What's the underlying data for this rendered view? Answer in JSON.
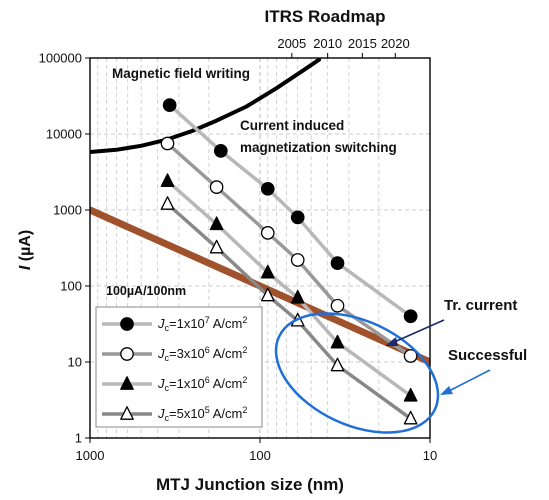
{
  "chart_data": {
    "type": "line",
    "title": "ITRS Roadmap",
    "xlabel": "MTJ  Junction size (nm)",
    "ylabel_italic": "I",
    "ylabel_rest": " (µA)",
    "x_scale": "log",
    "x_reversed": true,
    "xlim": [
      1000,
      10
    ],
    "y_scale": "log",
    "ylim": [
      1,
      100000
    ],
    "x_ticks": [
      {
        "value": 1000,
        "label": "1000"
      },
      {
        "value": 100,
        "label": "100"
      },
      {
        "value": 10,
        "label": "10"
      }
    ],
    "y_ticks": [
      {
        "value": 100000,
        "label": "100000"
      },
      {
        "value": 10000,
        "label": "10000"
      },
      {
        "value": 1000,
        "label": "1000"
      },
      {
        "value": 100,
        "label": "100"
      },
      {
        "value": 10,
        "label": "10"
      },
      {
        "value": 1,
        "label": "1"
      }
    ],
    "top_axis": {
      "ticks": [
        {
          "value": 65,
          "label": "2005"
        },
        {
          "value": 40,
          "label": "2010"
        },
        {
          "value": 25,
          "label": "2015"
        },
        {
          "value": 16,
          "label": "2020"
        }
      ]
    },
    "series": [
      {
        "name": "J_c=1x10^7 A/cm^2",
        "name_base": "J",
        "name_sub": "c",
        "name_mid": "=1x10",
        "name_sup": "7",
        "name_unit": " A/cm",
        "name_unit_sup": "2",
        "marker": "filled-circle",
        "line_color": "#b8b8b8",
        "x": [
          340,
          170,
          90,
          60,
          35,
          13
        ],
        "y": [
          24000,
          6000,
          1900,
          800,
          200,
          40
        ]
      },
      {
        "name": "J_c=3x10^6 A/cm^2",
        "name_base": "J",
        "name_sub": "c",
        "name_mid": "=3x10",
        "name_sup": "6",
        "name_unit": " A/cm",
        "name_unit_sup": "2",
        "marker": "open-circle",
        "line_color": "#999999",
        "x": [
          350,
          180,
          90,
          60,
          35,
          13
        ],
        "y": [
          7500,
          2000,
          500,
          220,
          55,
          12
        ]
      },
      {
        "name": "J_c=1x10^6 A/cm^2",
        "name_base": "J",
        "name_sub": "c",
        "name_mid": "=1x10",
        "name_sup": "6",
        "name_unit": " A/cm",
        "name_unit_sup": "2",
        "marker": "filled-triangle",
        "line_color": "#b8b8b8",
        "x": [
          350,
          180,
          90,
          60,
          35,
          13
        ],
        "y": [
          2400,
          650,
          150,
          70,
          18,
          3.6
        ]
      },
      {
        "name": "J_c=5x10^5 A/cm^2",
        "name_base": "J",
        "name_sub": "c",
        "name_mid": "=5x10",
        "name_sup": "5",
        "name_unit": " A/cm",
        "name_unit_sup": "2",
        "marker": "open-triangle",
        "line_color": "#888888",
        "x": [
          350,
          180,
          90,
          60,
          35,
          13
        ],
        "y": [
          1200,
          320,
          75,
          35,
          9,
          1.8
        ]
      }
    ],
    "curves": [
      {
        "label": "Magnetic field writing",
        "color": "#000000",
        "x": [
          1000,
          700,
          500,
          350,
          250,
          180,
          120,
          80,
          55,
          45
        ],
        "y": [
          5800,
          6200,
          7000,
          8500,
          11000,
          15000,
          23000,
          40000,
          70000,
          95000
        ]
      },
      {
        "label": "100µA/100nm",
        "color": "#a0522d",
        "x": [
          1000,
          10
        ],
        "y": [
          1000,
          10
        ]
      }
    ],
    "annotations": {
      "current_switching_line1": "Current induced",
      "current_switching_line2": "magnetization switching",
      "tr_current": "Tr. current",
      "successful": "Successful",
      "tr_current_color": "#c0504d",
      "successful_color": "#1f6fd8"
    },
    "grid": true,
    "legend_position": "bottom-left"
  }
}
